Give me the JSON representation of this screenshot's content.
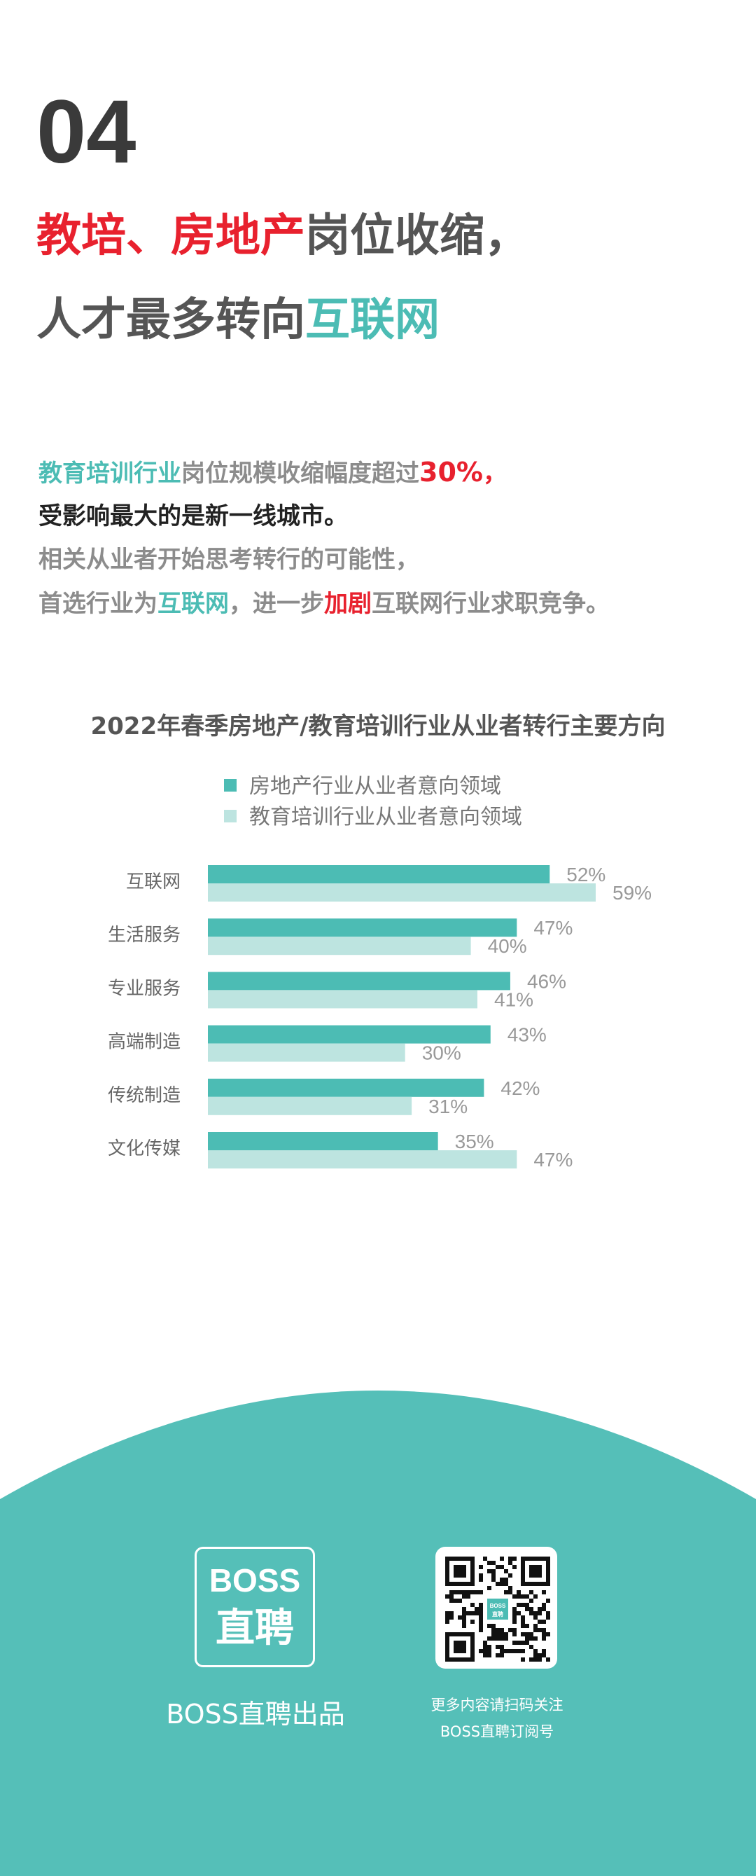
{
  "section_number": "04",
  "headline": {
    "line1": [
      {
        "text": "教培、房地产",
        "style": "red"
      },
      {
        "text": "岗位收缩，",
        "style": "gray"
      }
    ],
    "line2": [
      {
        "text": "人才最多转向",
        "style": "gray"
      },
      {
        "text": "互联网",
        "style": "teal"
      }
    ]
  },
  "paragraph": {
    "l1a": "教育培训行业",
    "l1b": "岗位规模收缩幅度超过",
    "l1c": "30%",
    "l1d": "，",
    "l2": "受影响最大的是新一线城市。",
    "l3": "相关从业者开始思考转行的可能性，",
    "l4a": "首选行业为",
    "l4b": "互联网",
    "l4c": "，进一步",
    "l4d": "加剧",
    "l4e": "互联网行业求职竞争。"
  },
  "colors": {
    "teal": "#4cbcb4",
    "light_teal": "#bde4e0",
    "red": "#e8212e",
    "footer": "#55bfb8"
  },
  "chart_data": {
    "type": "bar",
    "orientation": "horizontal",
    "title": "2022年春季房地产/教育培训行业从业者转行主要方向",
    "categories": [
      "互联网",
      "生活服务",
      "专业服务",
      "高端制造",
      "传统制造",
      "文化传媒"
    ],
    "series": [
      {
        "name": "房地产行业从业者意向领域",
        "values": [
          52,
          47,
          46,
          43,
          42,
          35
        ],
        "color": "#4cbcb4"
      },
      {
        "name": "教育培训行业从业者意向领域",
        "values": [
          59,
          40,
          41,
          30,
          31,
          47
        ],
        "color": "#bde4e0"
      }
    ],
    "value_suffix": "%",
    "legend": "top",
    "grid": false
  },
  "footer": {
    "logo_line1": "BOSS",
    "logo_line2": "直聘",
    "brand": "BOSS直聘出品",
    "qr_caption1": "更多内容请扫码关注",
    "qr_caption2": "BOSS直聘订阅号",
    "qr_center_line1": "BOSS",
    "qr_center_line2": "直聘"
  }
}
